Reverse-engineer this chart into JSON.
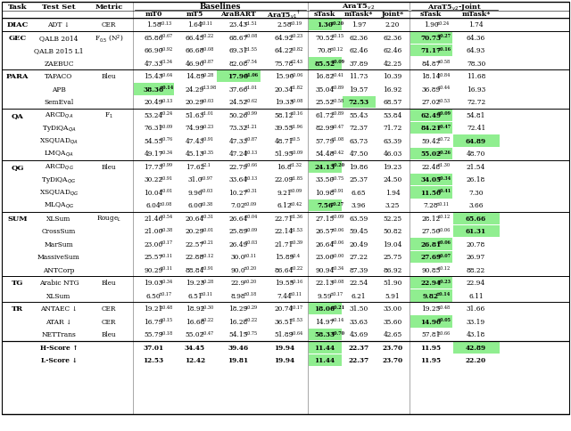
{
  "col_headers_row1": [
    "Task",
    "Test Set",
    "Metric",
    "Baselines",
    "",
    "",
    "",
    "AraT5_v2",
    "",
    "",
    "AraT5_v2-Joint",
    ""
  ],
  "col_headers_row2": [
    "",
    "",
    "",
    "mT0",
    "mT5",
    "AraBART",
    "AraT5_v1†",
    "sTask",
    "mTask*",
    "Joint*",
    "sTask",
    "mTask*"
  ],
  "rows": [
    {
      "task": "DIAC",
      "test_set": "ADT ↓",
      "metric": "CER",
      "vals": [
        "1.58±0.13",
        "1.64±0.11",
        "23.43±1.51",
        "2.58±0.19",
        "1.30±0.20",
        "1.97",
        "2.20",
        "1.90±0.24",
        "1.74"
      ],
      "hl": [
        4
      ],
      "hl_bold": [
        4
      ],
      "new_group": true
    },
    {
      "task": "GEC",
      "test_set": "QALB 2014",
      "metric": "F0.5 (N²)",
      "vals": [
        "65.86±0.67",
        "66.45±0.22",
        "68.67±0.08",
        "64.92±0.23",
        "70.52±0.15",
        "62.36",
        "62.36",
        "70.73±0.27",
        "64.36"
      ],
      "hl": [
        7
      ],
      "hl_bold": [
        7
      ],
      "new_group": true
    },
    {
      "task": "",
      "test_set": "QALB 2015 L1",
      "metric": "",
      "vals": [
        "66.90±0.92",
        "66.68±0.08",
        "69.31±1.55",
        "64.22±0.82",
        "70.8±0.12",
        "62.46",
        "62.46",
        "71.17±0.16",
        "64.93"
      ],
      "hl": [
        7
      ],
      "hl_bold": [
        7
      ],
      "new_group": false
    },
    {
      "task": "",
      "test_set": "ZAEBUC",
      "metric": "",
      "vals": [
        "47.33±3.34",
        "46.90±0.87",
        "82.08±7.54",
        "75.78±2.43",
        "85.52±0.09",
        "37.89",
        "42.25",
        "84.87±0.58",
        "78.30"
      ],
      "hl": [
        4
      ],
      "hl_bold": [
        4
      ],
      "new_group": false
    },
    {
      "task": "PARA",
      "test_set": "TAPACO",
      "metric": "Bleu",
      "vals": [
        "15.43±0.64",
        "14.89±0.28",
        "17.90±1.06",
        "15.90±0.06",
        "16.82±0.41",
        "11.73",
        "10.39",
        "18.14±0.84",
        "11.68"
      ],
      "hl": [
        2
      ],
      "hl_bold": [
        2
      ],
      "new_group": true
    },
    {
      "task": "",
      "test_set": "APB",
      "metric": "",
      "vals": [
        "38.36±0.14",
        "24.29±13.98",
        "37.66±1.01",
        "20.34±1.82",
        "35.04±0.89",
        "19.57",
        "16.92",
        "36.89±0.44",
        "16.93"
      ],
      "hl": [
        0
      ],
      "hl_bold": [
        0
      ],
      "new_group": false
    },
    {
      "task": "",
      "test_set": "SemEval",
      "metric": "",
      "vals": [
        "20.49±0.13",
        "20.29±0.03",
        "24.52±0.62",
        "19.33±0.08",
        "25.52±0.58",
        "72.53",
        "68.57",
        "27.02±0.53",
        "72.72"
      ],
      "hl": [
        5
      ],
      "hl_bold": [
        5
      ],
      "new_group": false
    },
    {
      "task": "QA",
      "test_set": "ARCDqa",
      "metric": "F1",
      "vals": [
        "53.24±0.24",
        "51.63±1.01",
        "50.26±0.99",
        "58.12±0.16",
        "61.72±0.89",
        "55.43",
        "53.84",
        "62.49±0.09",
        "54.81"
      ],
      "hl": [
        7
      ],
      "hl_bold": [
        7
      ],
      "new_group": true
    },
    {
      "task": "",
      "test_set": "TyDiQAqa",
      "metric": "",
      "vals": [
        "76.31±0.09",
        "74.99±0.23",
        "73.32±1.21",
        "39.55±1.96",
        "82.99±0.47",
        "72.37",
        "71.72",
        "84.21±0.47",
        "72.41"
      ],
      "hl": [
        7
      ],
      "hl_bold": [
        7
      ],
      "new_group": false
    },
    {
      "task": "",
      "test_set": "XSQUADqa",
      "metric": "",
      "vals": [
        "54.55±0.76",
        "47.43±0.91",
        "47.33±0.87",
        "48.71±0.5",
        "57.79±1.08",
        "63.73",
        "63.39",
        "59.42±0.72",
        "64.89"
      ],
      "hl": [
        8
      ],
      "hl_bold": [
        8
      ],
      "new_group": false
    },
    {
      "task": "",
      "test_set": "LMQAqa",
      "metric": "",
      "vals": [
        "49.17±0.34",
        "45.13±0.35",
        "47.24±0.13",
        "51.95±0.09",
        "54.48±0.42",
        "47.50",
        "46.03",
        "55.02±0.26",
        "48.70"
      ],
      "hl": [
        7
      ],
      "hl_bold": [
        7
      ],
      "new_group": false
    },
    {
      "task": "QG",
      "test_set": "ARCDqg",
      "metric": "Bleu",
      "vals": [
        "17.73±0.99",
        "17.62±2.1",
        "22.79±0.66",
        "16.8±1.32",
        "24.13±0.20",
        "19.86",
        "19.23",
        "22.48±1.30",
        "21.54"
      ],
      "hl": [
        4
      ],
      "hl_bold": [
        4
      ],
      "new_group": true
    },
    {
      "task": "",
      "test_set": "TyDiQAqg",
      "metric": "",
      "vals": [
        "30.22±0.91",
        "31.0±0.97",
        "33.64±0.13",
        "22.09±1.85",
        "33.50±0.75",
        "25.37",
        "24.50",
        "34.05±0.34",
        "26.18"
      ],
      "hl": [
        7
      ],
      "hl_bold": [
        7
      ],
      "new_group": false
    },
    {
      "task": "",
      "test_set": "XSQUADqg",
      "metric": "",
      "vals": [
        "10.04±0.01",
        "9.96±0.03",
        "10.27±0.31",
        "9.21±0.09",
        "10.98±0.91",
        "6.65",
        "1.94",
        "11.50±0.41",
        "7.30"
      ],
      "hl": [
        7
      ],
      "hl_bold": [
        7
      ],
      "new_group": false
    },
    {
      "task": "",
      "test_set": "MLQAqg",
      "metric": "",
      "vals": [
        "6.04±0.08",
        "6.00±0.38",
        "7.02±0.09",
        "6.12±0.42",
        "7.56±0.27",
        "3.96",
        "3.25",
        "7.28±0.11",
        "3.66"
      ],
      "hl": [
        4
      ],
      "hl_bold": [
        4
      ],
      "new_group": false
    },
    {
      "task": "SUM",
      "test_set": "XLSum",
      "metric": "RougeL",
      "vals": [
        "21.46±0.54",
        "20.64±0.31",
        "26.64±0.04",
        "22.71±1.36",
        "27.15±0.09",
        "63.59",
        "52.25",
        "28.12±0.12",
        "65.66"
      ],
      "hl": [
        8
      ],
      "hl_bold": [
        8
      ],
      "new_group": true
    },
    {
      "task": "",
      "test_set": "CrossSum",
      "metric": "",
      "vals": [
        "21.00±0.38",
        "20.29±0.01",
        "25.89±0.09",
        "22.14±1.53",
        "26.57±0.06",
        "59.45",
        "50.82",
        "27.50±0.06",
        "61.31"
      ],
      "hl": [
        8
      ],
      "hl_bold": [
        8
      ],
      "new_group": false
    },
    {
      "task": "",
      "test_set": "MarSum",
      "metric": "",
      "vals": [
        "23.00±0.17",
        "22.57±0.21",
        "26.49±0.03",
        "21.71±0.39",
        "26.64±0.06",
        "20.49",
        "19.04",
        "26.81±0.06",
        "20.78"
      ],
      "hl": [
        7
      ],
      "hl_bold": [
        7
      ],
      "new_group": false
    },
    {
      "task": "",
      "test_set": "MassiveSum",
      "metric": "",
      "vals": [
        "25.57±0.11",
        "22.88±0.12",
        "30.0±0.11",
        "15.89±0.4",
        "23.00±0.00",
        "27.22",
        "25.75",
        "27.69±0.07",
        "26.97"
      ],
      "hl": [
        7
      ],
      "hl_bold": [
        7
      ],
      "new_group": false
    },
    {
      "task": "",
      "test_set": "ANTCorp",
      "metric": "",
      "vals": [
        "90.29±0.11",
        "88.84±0.91",
        "90.0±0.20",
        "86.64±0.22",
        "90.94±0.34",
        "87.39",
        "86.92",
        "90.85±0.12",
        "88.22"
      ],
      "hl": [],
      "hl_bold": [],
      "new_group": false
    },
    {
      "task": "TG",
      "test_set": "Arabic NTG",
      "metric": "Bleu",
      "vals": [
        "19.03±0.34",
        "19.23±0.28",
        "22.9±0.20",
        "19.55±0.16",
        "22.13±0.08",
        "22.54",
        "51.90",
        "22.94±0.23",
        "22.94"
      ],
      "hl": [
        7
      ],
      "hl_bold": [
        7
      ],
      "new_group": true
    },
    {
      "task": "",
      "test_set": "XLSum",
      "metric": "",
      "vals": [
        "6.50±0.17",
        "6.51±0.11",
        "8.98±0.18",
        "7.44±0.11",
        "9.59±0.17",
        "6.21",
        "5.91",
        "9.82±0.14",
        "6.11"
      ],
      "hl": [
        7
      ],
      "hl_bold": [
        7
      ],
      "new_group": false
    },
    {
      "task": "TR",
      "test_set": "ANTAEC ↓",
      "metric": "CER",
      "vals": [
        "19.21±0.48",
        "18.92±0.30",
        "18.29±0.29",
        "20.74±0.17",
        "18.06±0.21",
        "31.50",
        "33.00",
        "19.25±0.48",
        "31.66"
      ],
      "hl": [
        4
      ],
      "hl_bold": [
        4
      ],
      "new_group": true
    },
    {
      "task": "",
      "test_set": "ATAR ↓",
      "metric": "CER",
      "vals": [
        "16.79±0.15",
        "16.68±0.22",
        "16.28±0.22",
        "36.51±1.53",
        "14.97±0.14",
        "33.63",
        "35.60",
        "14.90±0.05",
        "33.19"
      ],
      "hl": [
        7
      ],
      "hl_bold": [
        7
      ],
      "new_group": false
    },
    {
      "task": "",
      "test_set": "NETTrans",
      "metric": "Bleu",
      "vals": [
        "55.79±0.18",
        "55.02±0.47",
        "54.15±0.75",
        "51.89±0.64",
        "58.33±0.70",
        "43.69",
        "42.65",
        "57.81±0.66",
        "43.18"
      ],
      "hl": [
        4
      ],
      "hl_bold": [
        4
      ],
      "new_group": false
    },
    {
      "task": "",
      "test_set": "H-Score ↑",
      "metric": "",
      "vals": [
        "37.01",
        "34.45",
        "39.46",
        "19.94",
        "11.44",
        "22.37",
        "23.70",
        "11.95",
        "42.89"
      ],
      "hl": [
        4,
        8
      ],
      "hl_bold": [
        4,
        8
      ],
      "new_group": false,
      "is_score": true
    },
    {
      "task": "",
      "test_set": "L-Score ↓",
      "metric": "",
      "vals": [
        "12.53",
        "12.42",
        "19.81",
        "19.94",
        "11.44",
        "22.37",
        "23.70",
        "11.95",
        "22.20"
      ],
      "hl": [
        4
      ],
      "hl_bold": [
        4
      ],
      "new_group": false,
      "is_score": true
    }
  ],
  "green_color": "#90EE90",
  "figsize": [
    6.4,
    4.85
  ],
  "dpi": 100
}
